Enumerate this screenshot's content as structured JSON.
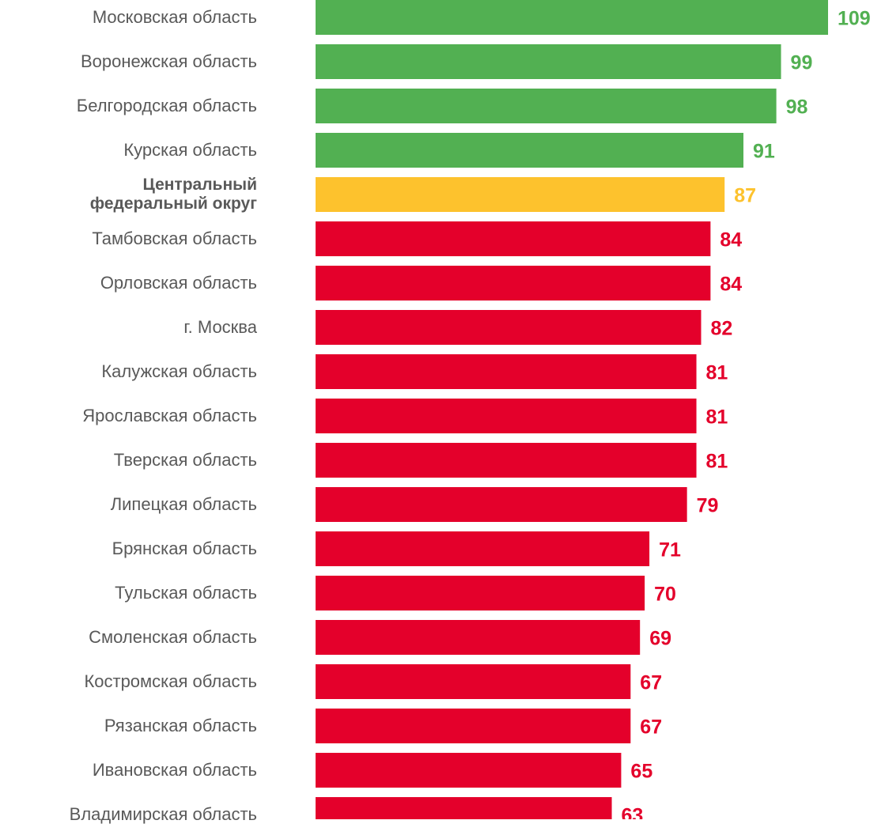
{
  "chart_data": {
    "type": "barh",
    "categories": [
      "Московская область",
      "Воронежская область",
      "Белгородская область",
      "Курская область",
      "Центральный федеральный округ",
      "Тамбовская область",
      "Орловская область",
      "г. Москва",
      "Калужская область",
      "Ярославская область",
      "Тверская область",
      "Липецкая область",
      "Брянская область",
      "Тульская область",
      "Смоленская область",
      "Костромская область",
      "Рязанская область",
      "Ивановская область",
      "Владимирская область"
    ],
    "values": [
      109,
      99,
      98,
      91,
      87,
      84,
      84,
      82,
      81,
      81,
      81,
      79,
      71,
      70,
      69,
      67,
      67,
      65,
      63
    ],
    "colors": [
      "#52b052",
      "#52b052",
      "#52b052",
      "#52b052",
      "#fdc22d",
      "#e4002b",
      "#e4002b",
      "#e4002b",
      "#e4002b",
      "#e4002b",
      "#e4002b",
      "#e4002b",
      "#e4002b",
      "#e4002b",
      "#e4002b",
      "#e4002b",
      "#e4002b",
      "#e4002b",
      "#e4002b"
    ],
    "xlim": [
      0,
      109
    ]
  }
}
